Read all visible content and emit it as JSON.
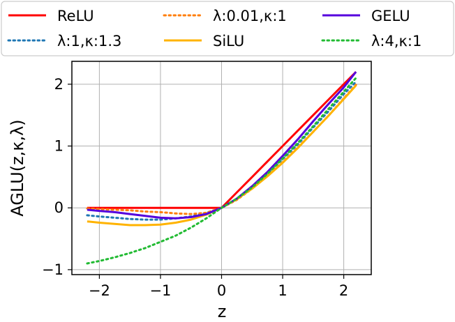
{
  "chart_data": {
    "type": "line",
    "title": "",
    "xlabel": "z",
    "ylabel": "AGLU(z,κ,λ)",
    "xlim": [
      -2.45,
      2.45
    ],
    "ylim": [
      -1.08,
      2.37
    ],
    "xticks": [
      -2,
      -1,
      0,
      1,
      2
    ],
    "xtick_labels": [
      "−2",
      "−1",
      "0",
      "1",
      "2"
    ],
    "yticks": [
      -1,
      0,
      1,
      2
    ],
    "ytick_labels": [
      "−1",
      "0",
      "1",
      "2"
    ],
    "grid": true,
    "legend_position": "top, above plot, 3 columns",
    "x": [
      -2.2,
      -2.0,
      -1.75,
      -1.5,
      -1.25,
      -1.0,
      -0.75,
      -0.5,
      -0.25,
      0.0,
      0.25,
      0.5,
      0.75,
      1.0,
      1.25,
      1.5,
      1.75,
      2.0,
      2.2
    ],
    "series": [
      {
        "name": "ReLU",
        "color": "#ff0000",
        "style": "solid",
        "values": [
          0,
          0,
          0,
          0,
          0,
          0,
          0,
          0,
          0,
          0,
          0.25,
          0.5,
          0.75,
          1.0,
          1.25,
          1.5,
          1.75,
          2.0,
          2.2
        ]
      },
      {
        "name": "λ:1,κ:1.3",
        "color": "#1f77b4",
        "style": "dotted",
        "values": [
          -0.12,
          -0.14,
          -0.16,
          -0.18,
          -0.19,
          -0.19,
          -0.17,
          -0.14,
          -0.08,
          0,
          0.14,
          0.32,
          0.55,
          0.79,
          1.03,
          1.3,
          1.56,
          1.84,
          2.04
        ]
      },
      {
        "name": "λ:0.01,κ:1",
        "color": "#ff7f0e",
        "style": "dotted",
        "values": [
          -0.01,
          -0.02,
          -0.03,
          -0.04,
          -0.06,
          -0.07,
          -0.09,
          -0.1,
          -0.08,
          0,
          0.13,
          0.31,
          0.52,
          0.74,
          0.98,
          1.23,
          1.49,
          1.77,
          1.99
        ]
      },
      {
        "name": "SiLU",
        "color": "#ffb300",
        "style": "solid",
        "values": [
          -0.22,
          -0.24,
          -0.26,
          -0.28,
          -0.28,
          -0.27,
          -0.24,
          -0.19,
          -0.11,
          0,
          0.14,
          0.31,
          0.51,
          0.73,
          0.97,
          1.23,
          1.49,
          1.76,
          1.98
        ]
      },
      {
        "name": "GELU",
        "color": "#5500dd",
        "style": "solid",
        "values": [
          -0.03,
          -0.05,
          -0.07,
          -0.1,
          -0.13,
          -0.16,
          -0.17,
          -0.15,
          -0.1,
          0,
          0.15,
          0.35,
          0.58,
          0.84,
          1.11,
          1.4,
          1.68,
          1.95,
          2.2
        ]
      },
      {
        "name": "λ:4,κ:1",
        "color": "#22bb33",
        "style": "dotted",
        "values": [
          -0.9,
          -0.86,
          -0.8,
          -0.73,
          -0.65,
          -0.55,
          -0.45,
          -0.32,
          -0.17,
          0,
          0.15,
          0.33,
          0.55,
          0.8,
          1.05,
          1.32,
          1.6,
          1.88,
          2.1
        ]
      }
    ]
  }
}
